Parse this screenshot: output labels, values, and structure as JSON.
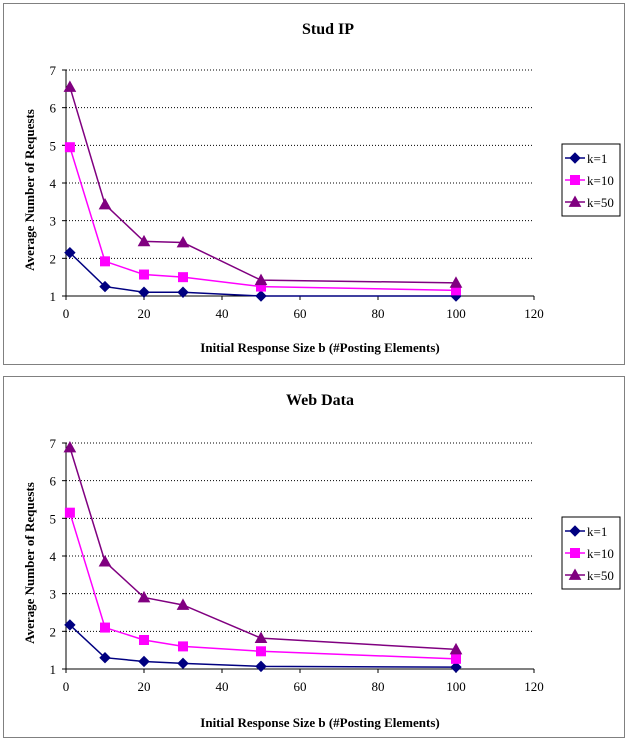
{
  "chart_data": [
    {
      "type": "line",
      "title": "Stud IP",
      "xlabel": "Initial Response Size b (#Posting Elements)",
      "ylabel": "Average Number of Requests",
      "xlim": [
        0,
        120
      ],
      "ylim": [
        1,
        7
      ],
      "xticks": [
        "0",
        "20",
        "40",
        "60",
        "80",
        "100",
        "120"
      ],
      "yticks": [
        "1",
        "2",
        "3",
        "4",
        "5",
        "6",
        "7"
      ],
      "grid": "horizontal",
      "legend": "right",
      "series": [
        {
          "name": "k=1",
          "color": "#000080",
          "marker": "diamond",
          "x": [
            1,
            10,
            20,
            30,
            50,
            100
          ],
          "values": [
            2.15,
            1.25,
            1.1,
            1.1,
            1.0,
            1.0
          ]
        },
        {
          "name": "k=10",
          "color": "#FF00FF",
          "marker": "square",
          "x": [
            1,
            10,
            20,
            30,
            50,
            100
          ],
          "values": [
            4.95,
            1.92,
            1.57,
            1.5,
            1.25,
            1.15
          ]
        },
        {
          "name": "k=50",
          "color": "#800080",
          "marker": "triangle",
          "x": [
            1,
            10,
            20,
            30,
            50,
            100
          ],
          "values": [
            6.55,
            3.43,
            2.45,
            2.42,
            1.42,
            1.35
          ]
        }
      ]
    },
    {
      "type": "line",
      "title": "Web Data",
      "xlabel": "Initial Response Size b (#Posting Elements)",
      "ylabel": "Average Number of Requests",
      "xlim": [
        0,
        120
      ],
      "ylim": [
        1,
        7
      ],
      "xticks": [
        "0",
        "20",
        "40",
        "60",
        "80",
        "100",
        "120"
      ],
      "yticks": [
        "1",
        "2",
        "3",
        "4",
        "5",
        "6",
        "7"
      ],
      "grid": "horizontal",
      "legend": "right",
      "series": [
        {
          "name": "k=1",
          "color": "#000080",
          "marker": "diamond",
          "x": [
            1,
            10,
            20,
            30,
            50,
            100
          ],
          "values": [
            2.17,
            1.3,
            1.2,
            1.15,
            1.07,
            1.05
          ]
        },
        {
          "name": "k=10",
          "color": "#FF00FF",
          "marker": "square",
          "x": [
            1,
            10,
            20,
            30,
            50,
            100
          ],
          "values": [
            5.15,
            2.1,
            1.77,
            1.6,
            1.47,
            1.27
          ]
        },
        {
          "name": "k=50",
          "color": "#800080",
          "marker": "triangle",
          "x": [
            1,
            10,
            20,
            30,
            50,
            100
          ],
          "values": [
            6.88,
            3.85,
            2.9,
            2.7,
            1.82,
            1.52
          ]
        }
      ]
    }
  ]
}
